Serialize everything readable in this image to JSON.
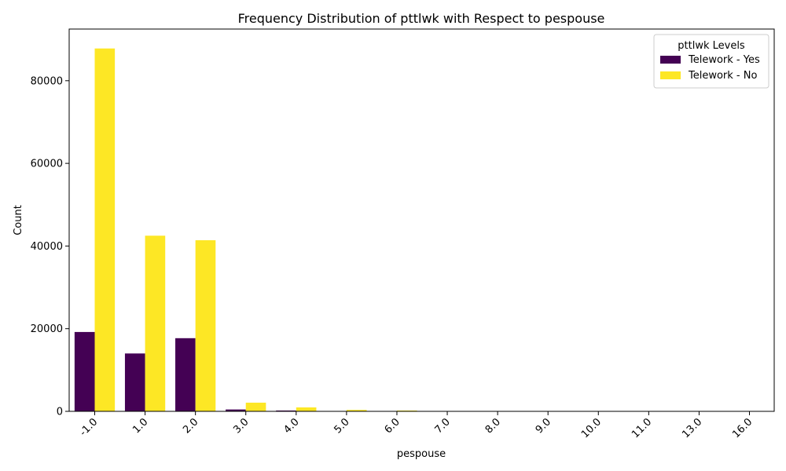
{
  "chart_data": {
    "type": "bar",
    "title": "Frequency Distribution of pttlwk with Respect to pespouse",
    "xlabel": "pespouse",
    "ylabel": "Count",
    "categories": [
      "-1.0",
      "1.0",
      "2.0",
      "3.0",
      "4.0",
      "5.0",
      "6.0",
      "7.0",
      "8.0",
      "9.0",
      "10.0",
      "11.0",
      "13.0",
      "16.0"
    ],
    "series": [
      {
        "name": "Telework - Yes",
        "color": "#440154",
        "values": [
          19200,
          14000,
          17700,
          450,
          200,
          60,
          30,
          10,
          5,
          5,
          3,
          2,
          1,
          1
        ]
      },
      {
        "name": "Telework - No",
        "color": "#fde725",
        "values": [
          87800,
          42500,
          41400,
          2100,
          950,
          350,
          200,
          60,
          30,
          20,
          10,
          8,
          4,
          3
        ]
      }
    ],
    "ylim": [
      0,
      92500
    ],
    "yticks": [
      0,
      20000,
      40000,
      60000,
      80000
    ],
    "legend": {
      "title": "pttlwk Levels",
      "position": "top-right"
    },
    "grid": false
  }
}
